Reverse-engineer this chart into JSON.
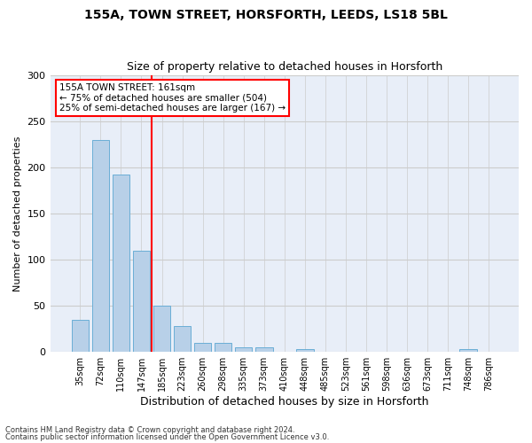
{
  "title1": "155A, TOWN STREET, HORSFORTH, LEEDS, LS18 5BL",
  "title2": "Size of property relative to detached houses in Horsforth",
  "xlabel": "Distribution of detached houses by size in Horsforth",
  "ylabel": "Number of detached properties",
  "bar_labels": [
    "35sqm",
    "72sqm",
    "110sqm",
    "147sqm",
    "185sqm",
    "223sqm",
    "260sqm",
    "298sqm",
    "335sqm",
    "373sqm",
    "410sqm",
    "448sqm",
    "485sqm",
    "523sqm",
    "561sqm",
    "598sqm",
    "636sqm",
    "673sqm",
    "711sqm",
    "748sqm",
    "786sqm"
  ],
  "bar_values": [
    35,
    230,
    192,
    110,
    50,
    28,
    10,
    10,
    5,
    5,
    0,
    3,
    0,
    0,
    0,
    0,
    0,
    0,
    0,
    3,
    0
  ],
  "bar_color": "#b8d0e8",
  "bar_edge_color": "#6aaed6",
  "grid_color": "#cccccc",
  "background_color": "#ffffff",
  "plot_bg_color": "#e8eef8",
  "vline_color": "red",
  "vline_x": 3.5,
  "annotation_text": "155A TOWN STREET: 161sqm\n← 75% of detached houses are smaller (504)\n25% of semi-detached houses are larger (167) →",
  "annotation_box_color": "white",
  "annotation_box_edge": "red",
  "footer1": "Contains HM Land Registry data © Crown copyright and database right 2024.",
  "footer2": "Contains public sector information licensed under the Open Government Licence v3.0.",
  "ylim": [
    0,
    300
  ],
  "yticks": [
    0,
    50,
    100,
    150,
    200,
    250,
    300
  ]
}
